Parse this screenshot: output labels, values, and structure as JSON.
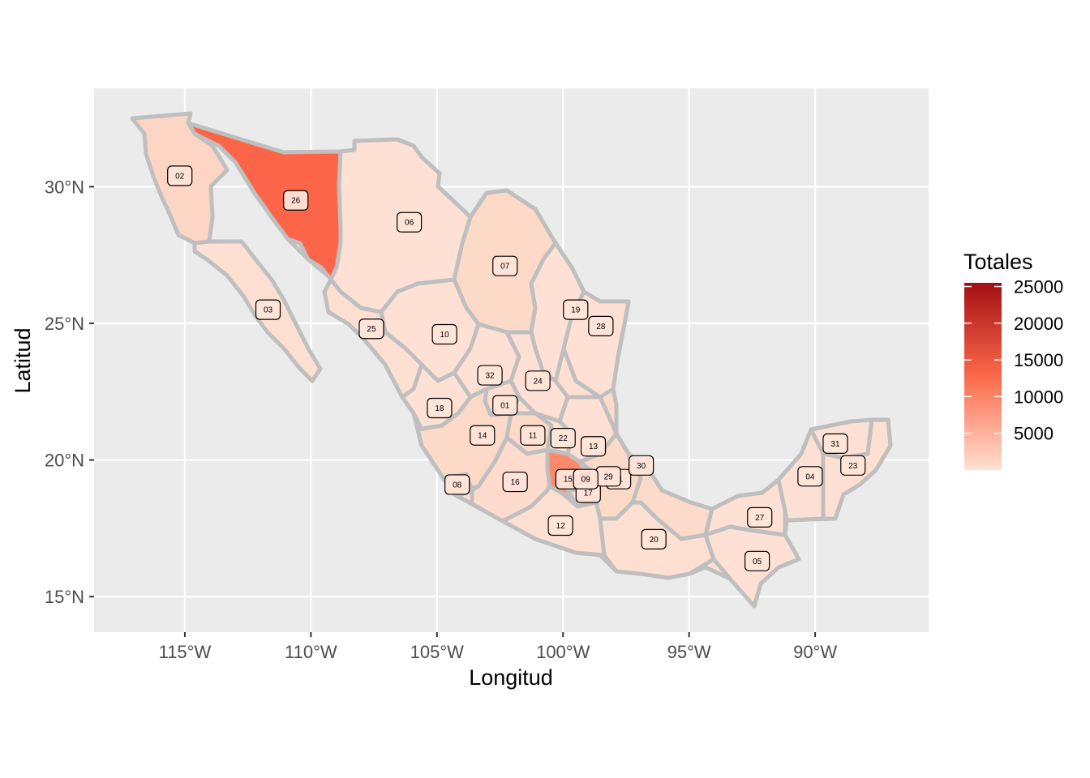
{
  "chart_data": {
    "type": "choropleth",
    "xlabel": "Longitud",
    "ylabel": "Latitud",
    "x_ticks": [
      "115°W",
      "110°W",
      "105°W",
      "100°W",
      "95°W",
      "90°W"
    ],
    "y_ticks": [
      "15°N",
      "20°N",
      "25°N",
      "30°N"
    ],
    "x_tick_values": [
      -115,
      -110,
      -105,
      -100,
      -95,
      -90
    ],
    "y_tick_values": [
      15,
      20,
      25,
      30
    ],
    "xlim": [
      -118.6,
      -85.5
    ],
    "ylim": [
      13.7,
      33.6
    ],
    "legend": {
      "title": "Totales",
      "ticks": [
        "25000",
        "20000",
        "15000",
        "10000",
        "5000"
      ],
      "tick_values": [
        25000,
        20000,
        15000,
        10000,
        5000
      ],
      "range": [
        0,
        25500
      ],
      "low_color": "#fee0d2",
      "mid_color": "#fb6a4a",
      "high_color": "#a50f15"
    },
    "grid": true,
    "regions": [
      {
        "code": "01",
        "lon": -102.3,
        "lat": 22.0,
        "total": 500
      },
      {
        "code": "02",
        "lon": -115.2,
        "lat": 30.4,
        "total": 1200
      },
      {
        "code": "03",
        "lon": -111.7,
        "lat": 25.5,
        "total": 400
      },
      {
        "code": "04",
        "lon": -90.2,
        "lat": 19.4,
        "total": 400
      },
      {
        "code": "05",
        "lon": -92.3,
        "lat": 16.3,
        "total": 900
      },
      {
        "code": "06",
        "lon": -106.1,
        "lat": 28.7,
        "total": 800
      },
      {
        "code": "07",
        "lon": -102.3,
        "lat": 27.1,
        "total": 1700
      },
      {
        "code": "08",
        "lon": -104.2,
        "lat": 19.1,
        "total": 2500
      },
      {
        "code": "10",
        "lon": -104.7,
        "lat": 24.6,
        "total": 800
      },
      {
        "code": "11",
        "lon": -101.2,
        "lat": 20.9,
        "total": 1200
      },
      {
        "code": "12",
        "lon": -100.1,
        "lat": 17.6,
        "total": 900
      },
      {
        "code": "13",
        "lon": -98.8,
        "lat": 20.5,
        "total": 800
      },
      {
        "code": "14",
        "lon": -103.2,
        "lat": 20.9,
        "total": 1200
      },
      {
        "code": "15",
        "lon": -99.8,
        "lat": 19.3,
        "total": 9000
      },
      {
        "code": "16",
        "lon": -101.9,
        "lat": 19.2,
        "total": 1100
      },
      {
        "code": "17",
        "lon": -99.0,
        "lat": 18.8,
        "total": 1200
      },
      {
        "code": "18",
        "lon": -104.9,
        "lat": 21.9,
        "total": 700
      },
      {
        "code": "19",
        "lon": -99.5,
        "lat": 25.5,
        "total": 700
      },
      {
        "code": "20",
        "lon": -96.4,
        "lat": 17.1,
        "total": 1000
      },
      {
        "code": "21",
        "lon": -97.8,
        "lat": 19.3,
        "total": 1300
      },
      {
        "code": "22",
        "lon": -100.0,
        "lat": 20.8,
        "total": 700
      },
      {
        "code": "23",
        "lon": -88.5,
        "lat": 19.8,
        "total": 700
      },
      {
        "code": "24",
        "lon": -101.0,
        "lat": 22.9,
        "total": 800
      },
      {
        "code": "25",
        "lon": -107.6,
        "lat": 24.8,
        "total": 800
      },
      {
        "code": "26",
        "lon": -110.6,
        "lat": 29.5,
        "total": 16000
      },
      {
        "code": "27",
        "lon": -92.2,
        "lat": 17.9,
        "total": 500
      },
      {
        "code": "28",
        "lon": -98.5,
        "lat": 24.9,
        "total": 700
      },
      {
        "code": "29",
        "lon": -98.2,
        "lat": 19.4,
        "total": 600
      },
      {
        "code": "30",
        "lon": -96.9,
        "lat": 19.8,
        "total": 1000
      },
      {
        "code": "31",
        "lon": -89.2,
        "lat": 20.6,
        "total": 800
      },
      {
        "code": "32",
        "lon": -102.9,
        "lat": 23.1,
        "total": 800
      },
      {
        "code": "09",
        "lon": -99.1,
        "lat": 19.3,
        "total": 25000
      }
    ]
  }
}
